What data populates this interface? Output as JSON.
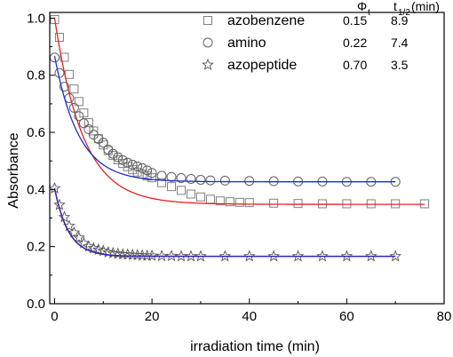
{
  "chart_data": {
    "type": "scatter",
    "title": "",
    "xlabel": "irradiation time (min)",
    "ylabel": "Absorbance",
    "xlim": [
      -1,
      80
    ],
    "ylim": [
      0.0,
      1.02
    ],
    "xticks": [
      "0",
      "20",
      "40",
      "60",
      "80"
    ],
    "yticks": [
      "0.0",
      "0.2",
      "0.4",
      "0.6",
      "0.8",
      "1.0"
    ],
    "grid": false,
    "legend_position": "top-right",
    "table_headers": {
      "phi": "Φ",
      "phi_sub": "t",
      "thalf": "t",
      "thalf_sub": "1/2",
      "thalf_unit": " (min)"
    },
    "series": [
      {
        "name": "azobenzene",
        "marker": "square",
        "marker_color": "#808080",
        "fit_color": "#e8211d",
        "phi": "0.15",
        "t_half": "8.9",
        "fit": {
          "a0": 0.348,
          "a1": 0.652,
          "k": 0.172,
          "x_end": 76
        },
        "x": [
          0,
          1,
          2,
          3,
          4,
          5,
          6,
          7,
          8,
          9,
          10,
          11,
          12,
          13,
          14,
          15,
          16,
          17,
          18,
          19,
          20,
          22,
          24,
          26,
          28,
          30,
          32,
          34,
          36,
          38,
          40,
          45,
          50,
          55,
          60,
          65,
          70,
          76
        ],
        "y": [
          0.995,
          0.933,
          0.863,
          0.803,
          0.752,
          0.708,
          0.668,
          0.634,
          0.605,
          0.578,
          0.556,
          0.536,
          0.519,
          0.504,
          0.491,
          0.48,
          0.47,
          0.461,
          0.454,
          0.447,
          0.441,
          0.424,
          0.41,
          0.397,
          0.384,
          0.374,
          0.366,
          0.36,
          0.357,
          0.355,
          0.354,
          0.352,
          0.351,
          0.35,
          0.35,
          0.35,
          0.35,
          0.35
        ]
      },
      {
        "name": "amino",
        "marker": "circle",
        "marker_color": "#606060",
        "fit_color": "#1b2bd0",
        "phi": "0.22",
        "t_half": "7.4",
        "fit": {
          "a0": 0.427,
          "a1": 0.44,
          "k": 0.2,
          "x_end": 70
        },
        "x": [
          0,
          1,
          2,
          3,
          4,
          5,
          6,
          7,
          8,
          9,
          10,
          11,
          12,
          13,
          14,
          15,
          16,
          17,
          18,
          19,
          20,
          22,
          24,
          26,
          28,
          30,
          32,
          35,
          40,
          45,
          50,
          55,
          60,
          65,
          70
        ],
        "y": [
          0.862,
          0.808,
          0.76,
          0.72,
          0.686,
          0.657,
          0.632,
          0.611,
          0.592,
          0.577,
          0.564,
          0.54,
          0.525,
          0.513,
          0.503,
          0.494,
          0.487,
          0.481,
          0.475,
          0.467,
          0.458,
          0.448,
          0.444,
          0.44,
          0.437,
          0.434,
          0.432,
          0.431,
          0.43,
          0.429,
          0.428,
          0.428,
          0.427,
          0.427,
          0.427
        ]
      },
      {
        "name": "azopeptide",
        "marker": "star",
        "marker_color": "#555555",
        "fit_color": "#1b2bd0",
        "fit2_color": "#e8211d",
        "phi": "0.70",
        "t_half": "3.5",
        "fit": {
          "a0": 0.166,
          "a1": 0.238,
          "k": 0.35,
          "x_end": 70
        },
        "x": [
          0,
          1,
          2,
          3,
          4,
          5,
          6,
          7,
          8,
          9,
          10,
          11,
          12,
          13,
          14,
          15,
          16,
          17,
          18,
          19,
          20,
          22,
          24,
          26,
          28,
          30,
          35,
          40,
          45,
          50,
          55,
          60,
          65,
          70
        ],
        "y": [
          0.404,
          0.346,
          0.303,
          0.272,
          0.249,
          0.231,
          0.212,
          0.2,
          0.194,
          0.189,
          0.185,
          0.18,
          0.177,
          0.175,
          0.173,
          0.172,
          0.171,
          0.17,
          0.169,
          0.168,
          0.168,
          0.167,
          0.167,
          0.166,
          0.166,
          0.166,
          0.166,
          0.166,
          0.166,
          0.166,
          0.166,
          0.166,
          0.166,
          0.166
        ]
      }
    ]
  }
}
